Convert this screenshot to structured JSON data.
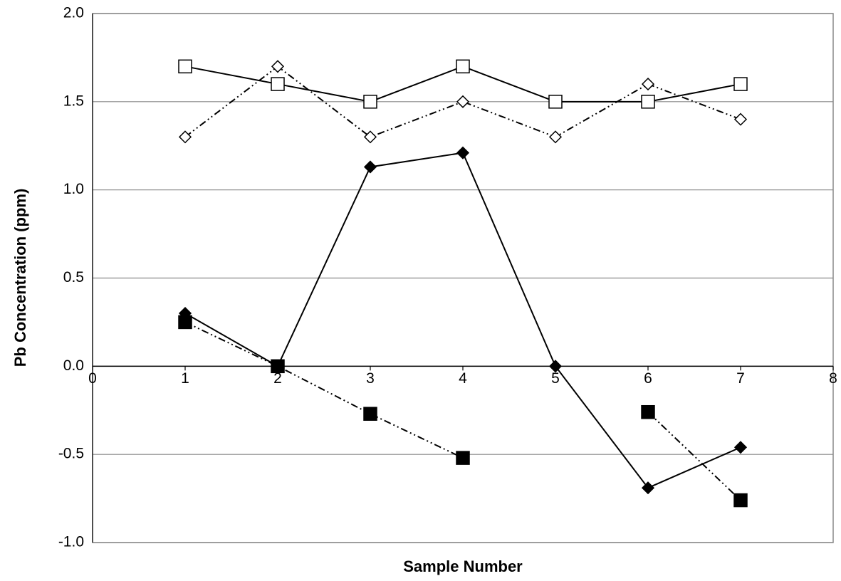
{
  "chart_data": {
    "type": "line",
    "x_label": "Sample Number",
    "y_label": "Pb Concentration (ppm)",
    "x": [
      1,
      2,
      3,
      4,
      5,
      6,
      7
    ],
    "xlim": [
      0,
      8
    ],
    "xticks": [
      0,
      1,
      2,
      3,
      4,
      5,
      6,
      7,
      8
    ],
    "ylim": [
      -1,
      2
    ],
    "yticks": [
      {
        "value": -1,
        "label": "-1.0"
      },
      -0.5,
      {
        "value": 0,
        "label": "0.0"
      },
      0.5,
      {
        "value": 1,
        "label": "1.0"
      },
      1.5,
      {
        "value": 2,
        "label": "2.0"
      }
    ],
    "grid": true,
    "series": [
      {
        "color": "#000000",
        "marker": "square",
        "marker_fill": "#ffffff",
        "dash": "solid",
        "values": [
          1.7,
          1.6,
          1.5,
          1.7,
          1.5,
          1.5,
          1.6
        ]
      },
      {
        "color": "#000000",
        "marker": "diamond",
        "marker_fill": "#ffffff",
        "dash": "dash-dot-dot",
        "values": [
          1.3,
          1.7,
          1.3,
          1.5,
          1.3,
          1.6,
          1.4
        ]
      },
      {
        "color": "#000000",
        "marker": "diamond",
        "marker_fill": "#000000",
        "dash": "solid",
        "values": [
          0.3,
          0.0,
          1.13,
          1.21,
          0.0,
          -0.69,
          -0.46
        ]
      },
      {
        "color": "#000000",
        "marker": "square",
        "marker_fill": "#000000",
        "dash": "dash-dot-dot",
        "values": [
          0.25,
          0.0,
          -0.27,
          -0.52,
          null,
          -0.26,
          -0.76
        ]
      }
    ]
  }
}
